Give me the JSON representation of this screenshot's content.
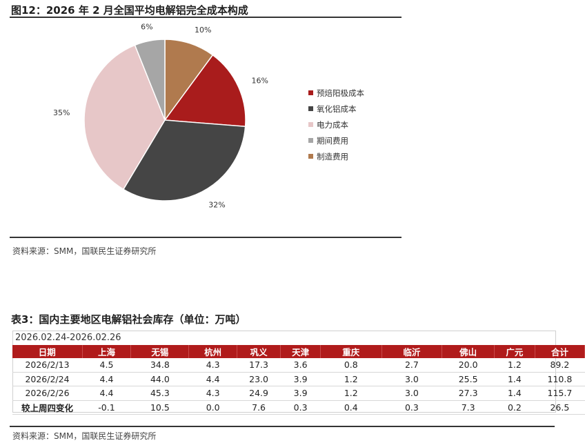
{
  "figure": {
    "title": "图12：2026 年 2 月全国平均电解铝完全成本构成",
    "source": "资料来源：SMM，国联民生证券研究所"
  },
  "chart_data": {
    "type": "pie",
    "title": "图12：2026 年 2 月全国平均电解铝完全成本构成",
    "slices": [
      {
        "name": "制造费用",
        "value": 10,
        "label": "10%",
        "color": "#b07a4e"
      },
      {
        "name": "预焙阳极成本",
        "value": 16,
        "label": "16%",
        "color": "#a91c1c"
      },
      {
        "name": "氧化铝成本",
        "value": 32,
        "label": "32%",
        "color": "#454545"
      },
      {
        "name": "电力成本",
        "value": 35,
        "label": "35%",
        "color": "#e7c7c8"
      },
      {
        "name": "期间费用",
        "value": 6,
        "label": "6%",
        "color": "#a6a6a6"
      }
    ],
    "legend": [
      {
        "name": "预焙阳极成本",
        "color": "#a91c1c"
      },
      {
        "name": "氧化铝成本",
        "color": "#454545"
      },
      {
        "name": "电力成本",
        "color": "#e7c7c8"
      },
      {
        "name": "期间费用",
        "color": "#a6a6a6"
      },
      {
        "name": "制造费用",
        "color": "#b07a4e"
      }
    ],
    "legend_position": "right"
  },
  "table": {
    "title": "表3：国内主要地区电解铝社会库存（单位：万吨）",
    "date_range": "2026.02.24-2026.02.26",
    "headers": [
      "日期",
      "上海",
      "无锡",
      "杭州",
      "巩义",
      "天津",
      "重庆",
      "临沂",
      "佛山",
      "广元",
      "合计"
    ],
    "rows": [
      [
        "2026/2/13",
        "4.5",
        "34.8",
        "4.3",
        "17.3",
        "3.6",
        "0.8",
        "2.7",
        "20.0",
        "1.2",
        "89.2"
      ],
      [
        "2026/2/24",
        "4.4",
        "44.0",
        "4.4",
        "23.0",
        "3.9",
        "1.2",
        "3.0",
        "25.5",
        "1.4",
        "110.8"
      ],
      [
        "2026/2/26",
        "4.4",
        "45.3",
        "4.3",
        "24.9",
        "3.9",
        "1.2",
        "3.0",
        "27.3",
        "1.4",
        "115.7"
      ],
      [
        "较上周四变化",
        "-0.1",
        "10.5",
        "0.0",
        "7.6",
        "0.3",
        "0.4",
        "0.3",
        "7.3",
        "0.2",
        "26.5"
      ]
    ],
    "source": "资料来源：SMM，国联民生证券研究所",
    "header_color": "#b01b1b"
  }
}
